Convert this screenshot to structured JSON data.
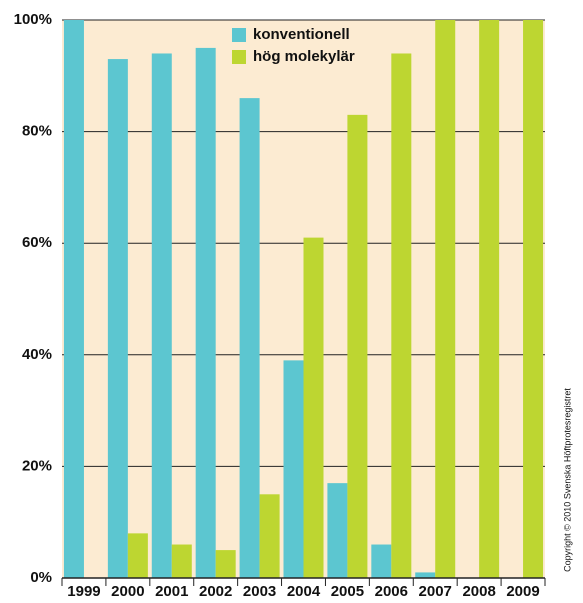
{
  "chart_data": {
    "type": "bar",
    "categories": [
      "1999",
      "2000",
      "2001",
      "2002",
      "2003",
      "2004",
      "2005",
      "2006",
      "2007",
      "2008",
      "2009"
    ],
    "series": [
      {
        "name": "konventionell",
        "color": "#5cc6d0",
        "values": [
          100,
          93,
          94,
          95,
          86,
          39,
          17,
          6,
          1,
          0,
          0
        ]
      },
      {
        "name": "hög molekylär",
        "color": "#bdd631",
        "values": [
          0,
          8,
          6,
          5,
          15,
          61,
          83,
          94,
          100,
          100,
          100
        ]
      }
    ],
    "ylim": [
      0,
      100
    ],
    "yticks": [
      {
        "value": 0,
        "label": "0%"
      },
      {
        "value": 20,
        "label": "20%"
      },
      {
        "value": 40,
        "label": "40%"
      },
      {
        "value": 60,
        "label": "60%"
      },
      {
        "value": 80,
        "label": "80%"
      },
      {
        "value": 100,
        "label": "100%"
      }
    ],
    "grid": true,
    "legend": "top",
    "background": "#fcebd2",
    "source": "Copyright © 2010 Svenska Höftprotesregistret"
  }
}
